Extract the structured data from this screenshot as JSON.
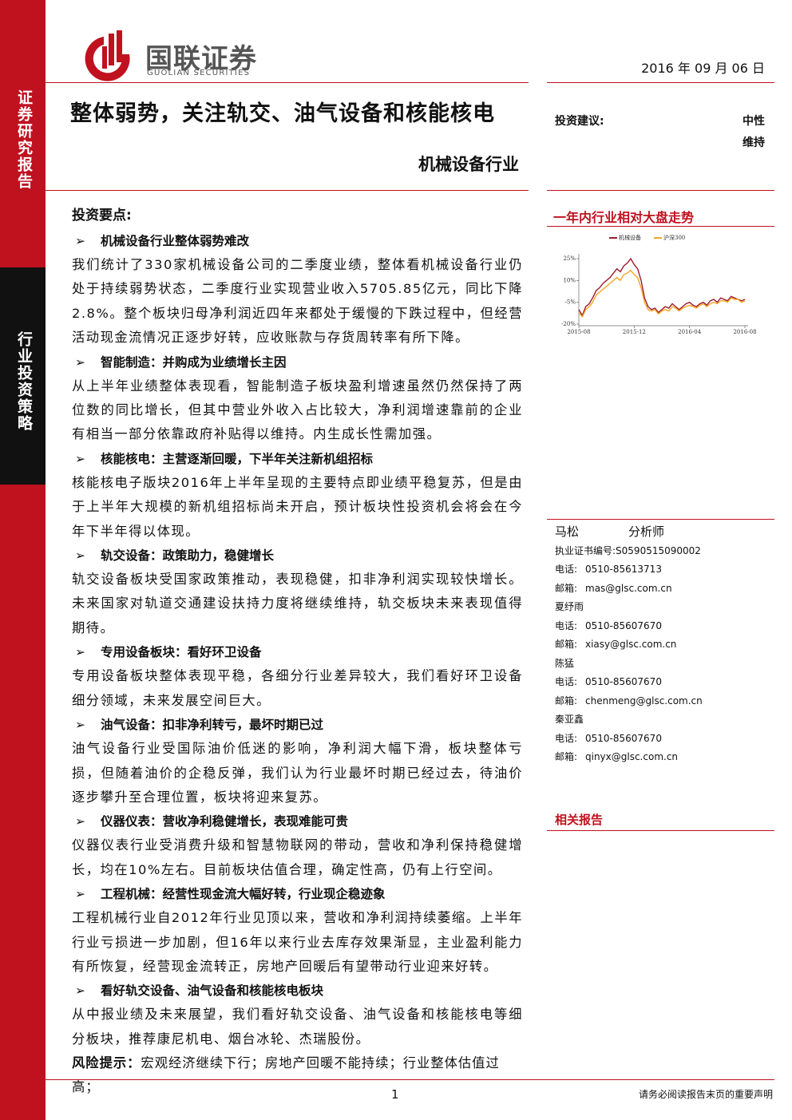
{
  "header": {
    "logo_cn": "国联证券",
    "logo_en": "GUOLIAN SECURITIES",
    "date": "2016 年 09 月 06 日"
  },
  "sidebar": {
    "top": "证券研究报告",
    "bottom": "行业投资策略"
  },
  "title": "整体弱势，关注轨交、油气设备和核能核电",
  "subtitle": "机械设备行业",
  "rating": {
    "label": "投资建议:",
    "value": "中性",
    "change": "维持"
  },
  "section": "投资要点:",
  "points": [
    {
      "heading": "机械设备行业整体弱势难改",
      "body": "我们统计了330家机械设备公司的二季度业绩，整体看机械设备行业仍处于持续弱势状态，二季度行业实现营业收入5705.85亿元，同比下降2.8%。整个板块归母净利润近四年来都处于缓慢的下跌过程中，但经营活动现金流情况正逐步好转，应收账款与存货周转率有所下降。"
    },
    {
      "heading": "智能制造：并购成为业绩增长主因",
      "body": "从上半年业绩整体表现看，智能制造子板块盈利增速虽然仍然保持了两位数的同比增长，但其中营业外收入占比较大，净利润增速靠前的企业有相当一部分依靠政府补贴得以维持。内生成长性需加强。"
    },
    {
      "heading": "核能核电：主营逐渐回暖，下半年关注新机组招标",
      "body": "核能核电子版块2016年上半年呈现的主要特点即业绩平稳复苏，但是由于上半年大规模的新机组招标尚未开启，预计板块性投资机会将会在今年下半年得以体现。"
    },
    {
      "heading": "轨交设备：政策助力，稳健增长",
      "body": "轨交设备板块受国家政策推动，表现稳健，扣非净利润实现较快增长。未来国家对轨道交通建设扶持力度将继续维持，轨交板块未来表现值得期待。"
    },
    {
      "heading": "专用设备板块：看好环卫设备",
      "body": "专用设备板块整体表现平稳，各细分行业差异较大，我们看好环卫设备细分领域，未来发展空间巨大。"
    },
    {
      "heading": "油气设备：扣非净利转亏，最坏时期已过",
      "body": "油气设备行业受国际油价低迷的影响，净利润大幅下滑，板块整体亏损，但随着油价的企稳反弹，我们认为行业最坏时期已经过去，待油价逐步攀升至合理位置，板块将迎来复苏。"
    },
    {
      "heading": "仪器仪表：营收净利稳健增长，表现难能可贵",
      "body": "仪器仪表行业受消费升级和智慧物联网的带动，营收和净利保持稳健增长，均在10%左右。目前板块估值合理，确定性高，仍有上行空间。"
    },
    {
      "heading": "工程机械：经营性现金流大幅好转，行业现企稳迹象",
      "body": "工程机械行业自2012年行业见顶以来，营收和净利润持续萎缩。上半年行业亏损进一步加剧，但16年以来行业去库存效果渐显，主业盈利能力有所恢复，经营现金流转正，房地产回暖后有望带动行业迎来好转。"
    },
    {
      "heading": "看好轨交设备、油气设备和核能核电板块",
      "body": "从中报业绩及未来展望，我们看好轨交设备、油气设备和核能核电等细分板块，推荐康尼机电、烟台冰轮、杰瑞股份。"
    }
  ],
  "risk": {
    "label": "风险提示：",
    "text": "宏观经济继续下行；房地产回暖不能持续；行业整体估值过高；"
  },
  "chart_data": {
    "type": "line",
    "title": "一年内行业相对大盘走势",
    "categories": [
      "2015-08",
      null,
      null,
      null,
      null,
      null,
      null,
      null,
      null,
      null,
      null,
      null,
      null,
      null,
      null,
      null,
      "2015-12",
      null,
      null,
      null,
      null,
      null,
      null,
      null,
      null,
      null,
      null,
      null,
      null,
      null,
      null,
      null,
      "2016-04",
      null,
      null,
      null,
      null,
      null,
      null,
      null,
      null,
      null,
      null,
      null,
      null,
      null,
      null,
      null,
      "2016-08"
    ],
    "series": [
      {
        "name": "机械设备",
        "color": "#9b1b30",
        "values": [
          -10,
          -14,
          -8,
          -6,
          -2,
          3,
          5,
          8,
          10,
          12,
          15,
          18,
          16,
          20,
          22,
          25,
          21,
          18,
          10,
          -2,
          -8,
          -10,
          -9,
          -12,
          -10,
          -8,
          -9,
          -6,
          -8,
          -10,
          -8,
          -6,
          -5,
          -7,
          -8,
          -6,
          -5,
          -7,
          -4,
          -3,
          -5,
          -2,
          -3,
          -4,
          -1,
          -2,
          -3,
          -4,
          -3
        ]
      },
      {
        "name": "沪深300",
        "color": "#f5a623",
        "values": [
          -12,
          -15,
          -10,
          -8,
          -5,
          0,
          2,
          4,
          6,
          8,
          10,
          12,
          10,
          14,
          15,
          17,
          14,
          12,
          5,
          -5,
          -10,
          -11,
          -10,
          -13,
          -11,
          -10,
          -11,
          -8,
          -9,
          -11,
          -9,
          -8,
          -7,
          -8,
          -9,
          -7,
          -6,
          -8,
          -6,
          -5,
          -6,
          -4,
          -4,
          -5,
          -2,
          -3,
          -3,
          -5,
          -4
        ]
      }
    ],
    "ylim": [
      -20,
      25
    ],
    "yticks": [
      {
        "value": 25,
        "label": "25%"
      },
      {
        "value": 10,
        "label": "10%"
      },
      {
        "value": -5,
        "label": "-5%"
      },
      {
        "value": -20,
        "label": "-20%"
      }
    ],
    "xticks": [
      0,
      16,
      32,
      48
    ]
  },
  "analysts": [
    {
      "name": "马松",
      "role": "分析师",
      "cert_label": "执业证书编号:",
      "cert": "S0590515090002",
      "phone_label": "电话:",
      "phone": "0510-85613713",
      "email_label": "邮箱:",
      "email": "mas@glsc.com.cn"
    },
    {
      "name": "夏纾雨",
      "phone_label": "电话:",
      "phone": "0510-85607670",
      "email_label": "邮箱:",
      "email": "xiasy@glsc.com.cn"
    },
    {
      "name": "陈猛",
      "phone_label": "电话:",
      "phone": "0510-85607670",
      "email_label": "邮箱:",
      "email": "chenmeng@glsc.com.cn"
    },
    {
      "name": "秦亚鑫",
      "phone_label": "电话:",
      "phone": "0510-85607670",
      "email_label": "邮箱:",
      "email": "qinyx@glsc.com.cn"
    }
  ],
  "related": "相关报告",
  "footer": {
    "page": "1",
    "disclaimer": "请务必阅读报告末页的重要声明"
  }
}
